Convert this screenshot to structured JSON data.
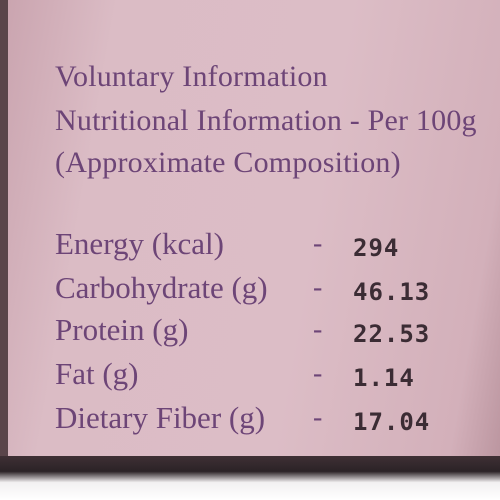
{
  "header": {
    "line1": "Voluntary Information",
    "line2": "Nutritional Information - Per 100g",
    "line3": "(Approximate Composition)"
  },
  "separator": "-",
  "rows": [
    {
      "label": "Energy (kcal)",
      "value": 294
    },
    {
      "label": "Carbohydrate (g)",
      "value": 46.13
    },
    {
      "label": "Protein (g)",
      "value": 22.53
    },
    {
      "label": "Fat (g)",
      "value": 1.14
    },
    {
      "label": "Dietary Fiber (g)",
      "value": 17.04
    }
  ]
}
